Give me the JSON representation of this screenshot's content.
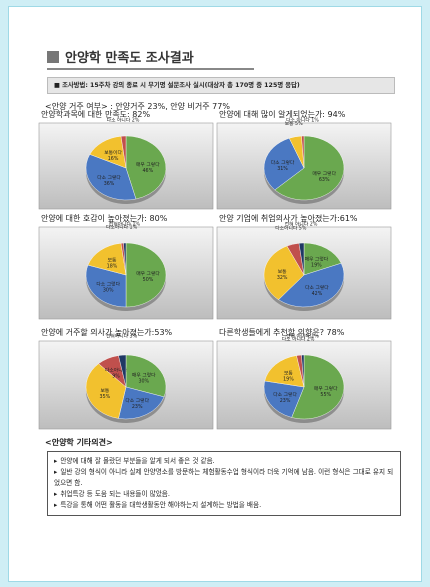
{
  "header": {
    "title": "안양학 만족도 조사결과"
  },
  "method": "■ 조사방법: 15주차 강의 종료 시 무기명 설문조사 실시(대상자 총 170명 중 125명 응답)",
  "residence": "<안양 거주 여부> : 안양거주 23%, 안양 비거주 77%",
  "chart_data": [
    {
      "type": "pie",
      "title": "안양학과목에 대한 만족도: 82%",
      "categories": [
        "매우 그렇다",
        "다소 그렇다",
        "보통이다",
        "다소 아니다"
      ],
      "values": [
        46,
        36,
        16,
        2
      ],
      "value_labels": [
        "46%",
        "36%",
        "16%",
        "2%"
      ],
      "colors": [
        "#6aa84f",
        "#4a78c2",
        "#f2c12e",
        "#c0504d"
      ]
    },
    {
      "type": "pie",
      "title": "안양에 대해 많이 알게되었는가: 94%",
      "categories": [
        "매우 그렇다",
        "다소 그렇다",
        "보통",
        "다소 아니다"
      ],
      "values": [
        63,
        31,
        5,
        1
      ],
      "value_labels": [
        "63%",
        "31%",
        "5%",
        "1%"
      ],
      "colors": [
        "#6aa84f",
        "#4a78c2",
        "#f2c12e",
        "#c0504d"
      ]
    },
    {
      "type": "pie",
      "title": "안양에 대한 호감이 높아졌는가: 80%",
      "categories": [
        "매우 그렇다",
        "다소 그렇다",
        "보통",
        "다소아니다",
        "전혀아니다"
      ],
      "values": [
        50,
        30,
        18,
        1,
        1
      ],
      "value_labels": [
        "50%",
        "30%",
        "18%",
        "1%",
        "1%"
      ],
      "colors": [
        "#6aa84f",
        "#4a78c2",
        "#f2c12e",
        "#c0504d",
        "#1f3864"
      ]
    },
    {
      "type": "pie",
      "title": "안양 기업에 취업의사가 높아졌는가:61%",
      "categories": [
        "매우 그렇다",
        "다소 그렇다",
        "보통",
        "다소아니다",
        "전혀 아니다"
      ],
      "values": [
        19,
        42,
        32,
        5,
        2
      ],
      "value_labels": [
        "19%",
        "42%",
        "32%",
        "5%",
        "2%"
      ],
      "colors": [
        "#6aa84f",
        "#4a78c2",
        "#f2c12e",
        "#c0504d",
        "#1f3864"
      ]
    },
    {
      "type": "pie",
      "title": "안양에 거주할 의사가 높아졌는가:53%",
      "categories": [
        "매우 그렇다",
        "다소 그렇다",
        "보통",
        "다소아니다",
        "전혀아니다"
      ],
      "values": [
        30,
        23,
        35,
        9,
        3
      ],
      "value_labels": [
        "30%",
        "23%",
        "35%",
        "9%",
        "3%"
      ],
      "colors": [
        "#6aa84f",
        "#4a78c2",
        "#f2c12e",
        "#c0504d",
        "#1f3864"
      ]
    },
    {
      "type": "pie",
      "title": "다른학생들에게 추천할 의향은? 78%",
      "categories": [
        "매우 그렇다",
        "다소 그렇다",
        "보통",
        "다소 아니다",
        "전혀 아니다"
      ],
      "values": [
        55,
        23,
        19,
        2,
        1
      ],
      "value_labels": [
        "55%",
        "23%",
        "19%",
        "2%",
        "1%"
      ],
      "colors": [
        "#6aa84f",
        "#4a78c2",
        "#f2c12e",
        "#c0504d",
        "#1f3864"
      ]
    }
  ],
  "opinions": {
    "heading": "<안양학 기타의견>",
    "items": [
      "안양에 대해 잘 몰랐던 부분들을 알게 되서 좋은 것 같음.",
      "일반 강의 형식이 아니라 실제 안양명소를 방문하는 체험활동수업 형식이라 더욱 기억에 남음. 이런 형식은 그대로 유지 되었으면 함.",
      "취업특강 등 도움 되는 내용들이 많았음.",
      "특강을 통해 어떤 활동을 대학생활동안 해야하는지 설계하는 방법을 배움."
    ]
  }
}
